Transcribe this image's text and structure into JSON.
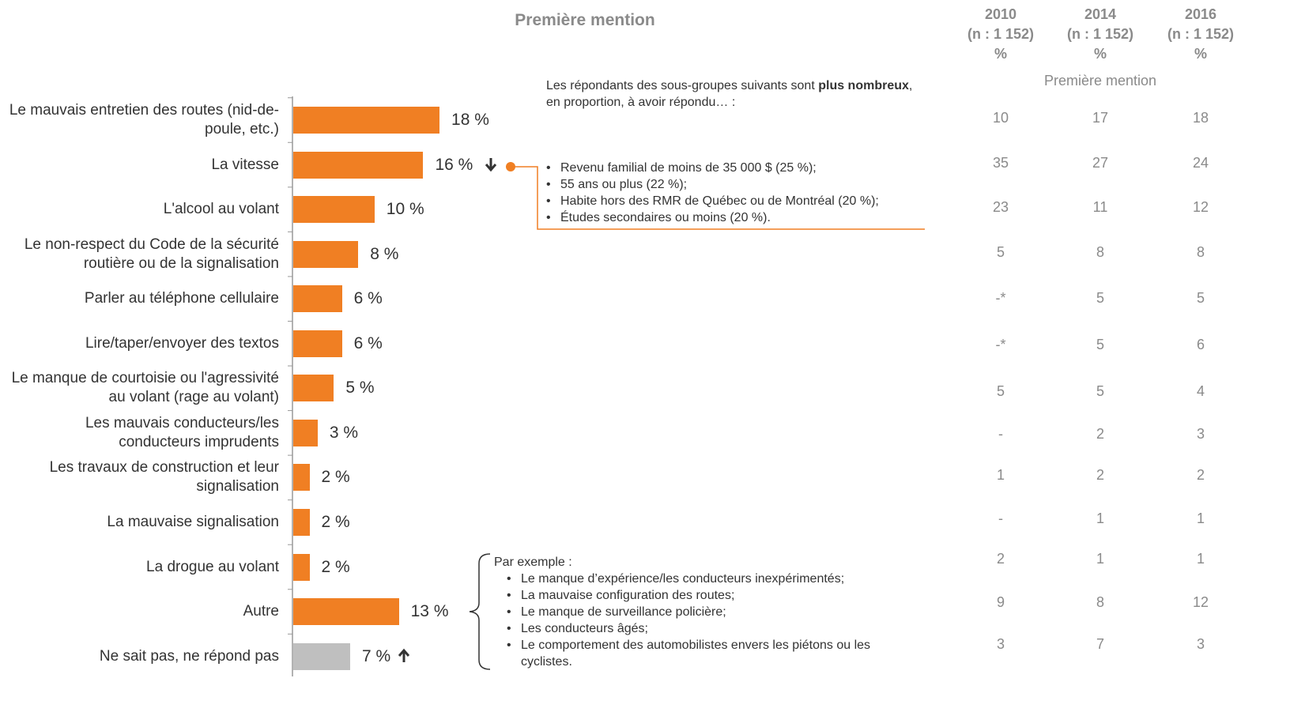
{
  "chart_data": {
    "type": "hbar",
    "categories": [
      "Le mauvais entretien des routes (nid-de-poule, etc.)",
      "La vitesse",
      "L'alcool au volant",
      "Le non-respect du Code de la sécurité routière ou de la signalisation",
      "Parler au téléphone cellulaire",
      "Lire/taper/envoyer des textos",
      "Le manque de courtoisie ou l'agressivité au volant (rage au volant)",
      "Les mauvais conducteurs/les conducteurs imprudents",
      "Les travaux de construction et leur signalisation",
      "La mauvaise signalisation",
      "La drogue au volant",
      "Autre",
      "Ne sait pas, ne répond pas"
    ],
    "values": [
      18,
      16,
      10,
      8,
      6,
      6,
      5,
      3,
      2,
      2,
      2,
      13,
      7
    ],
    "value_labels": [
      "18 %",
      "16 %",
      "10 %",
      "8 %",
      "6 %",
      "6 %",
      "5 %",
      "3 %",
      "2 %",
      "2 %",
      "2 %",
      "13 %",
      "7 %"
    ],
    "colors": [
      "#f07f23",
      "#f07f23",
      "#f07f23",
      "#f07f23",
      "#f07f23",
      "#f07f23",
      "#f07f23",
      "#f07f23",
      "#f07f23",
      "#f07f23",
      "#f07f23",
      "#f07f23",
      "#bfbfbf"
    ],
    "annotation_subgroups": {
      "intro": [
        "Les répondants des sous-groupes suivants sont ",
        "plus nombreux",
        ", en proportion, à avoir répondu… :"
      ],
      "items": [
        "Revenu familial de moins de 35 000 $ (25 %);",
        "55 ans ou plus (22 %);",
        "Habite hors des RMR de Québec ou de Montréal (20 %);",
        "Études secondaires ou moins (20 %)."
      ]
    },
    "annotation_examples": {
      "intro": "Par exemple :",
      "items": [
        "Le manque d’expérience/les conducteurs inexpérimentés;",
        "La mauvaise configuration des routes;",
        "Le manque de surveillance policière;",
        "Les conducteurs âgés;",
        "Le comportement des automobilistes envers les piétons ou les cyclistes."
      ]
    }
  },
  "title": "Première mention",
  "table": {
    "subtitle": "Première mention",
    "columns": [
      {
        "year": "2010",
        "n": "(n : 1 152)",
        "unit": "%"
      },
      {
        "year": "2014",
        "n": "(n : 1 152)",
        "unit": "%"
      },
      {
        "year": "2016",
        "n": "(n : 1 152)",
        "unit": "%"
      }
    ],
    "rows": [
      [
        10,
        17,
        18
      ],
      [
        35,
        27,
        24
      ],
      [
        23,
        11,
        12
      ],
      [
        5,
        8,
        8
      ],
      [
        "-*",
        5,
        5
      ],
      [
        "-*",
        5,
        6
      ],
      [
        5,
        5,
        4
      ],
      [
        "-",
        2,
        3
      ],
      [
        1,
        2,
        2
      ],
      [
        "-",
        1,
        1
      ],
      [
        2,
        1,
        1
      ],
      [
        9,
        8,
        12
      ],
      [
        3,
        7,
        3
      ]
    ]
  }
}
